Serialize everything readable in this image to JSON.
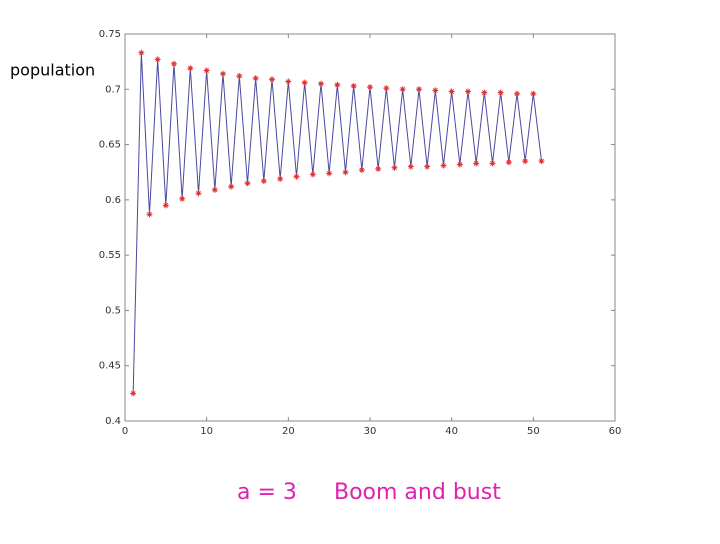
{
  "chart_data": {
    "type": "line",
    "ylabel": "population",
    "annotations": [
      "a = 3",
      "Boom and bust"
    ],
    "x": [
      1,
      2,
      3,
      4,
      5,
      6,
      7,
      8,
      9,
      10,
      11,
      12,
      13,
      14,
      15,
      16,
      17,
      18,
      19,
      20,
      21,
      22,
      23,
      24,
      25,
      26,
      27,
      28,
      29,
      30,
      31,
      32,
      33,
      34,
      35,
      36,
      37,
      38,
      39,
      40,
      41,
      42,
      43,
      44,
      45,
      46,
      47,
      48,
      49,
      50,
      51
    ],
    "values": [
      0.425,
      0.733,
      0.587,
      0.727,
      0.595,
      0.723,
      0.601,
      0.719,
      0.606,
      0.717,
      0.609,
      0.714,
      0.612,
      0.712,
      0.615,
      0.71,
      0.617,
      0.709,
      0.619,
      0.707,
      0.621,
      0.706,
      0.623,
      0.705,
      0.624,
      0.704,
      0.625,
      0.703,
      0.627,
      0.702,
      0.628,
      0.701,
      0.629,
      0.7,
      0.63,
      0.7,
      0.63,
      0.699,
      0.631,
      0.698,
      0.632,
      0.698,
      0.633,
      0.697,
      0.633,
      0.697,
      0.634,
      0.696,
      0.635,
      0.696,
      0.635
    ],
    "color": "#4a4aa0",
    "marker_color": "#e03030",
    "xlim": [
      0,
      60
    ],
    "xticks": [
      0,
      10,
      20,
      30,
      40,
      50,
      60
    ],
    "ylim": [
      0.4,
      0.75
    ],
    "yticks": [
      0.4,
      0.45,
      0.5,
      0.55,
      0.6,
      0.65,
      0.7,
      0.75
    ]
  }
}
